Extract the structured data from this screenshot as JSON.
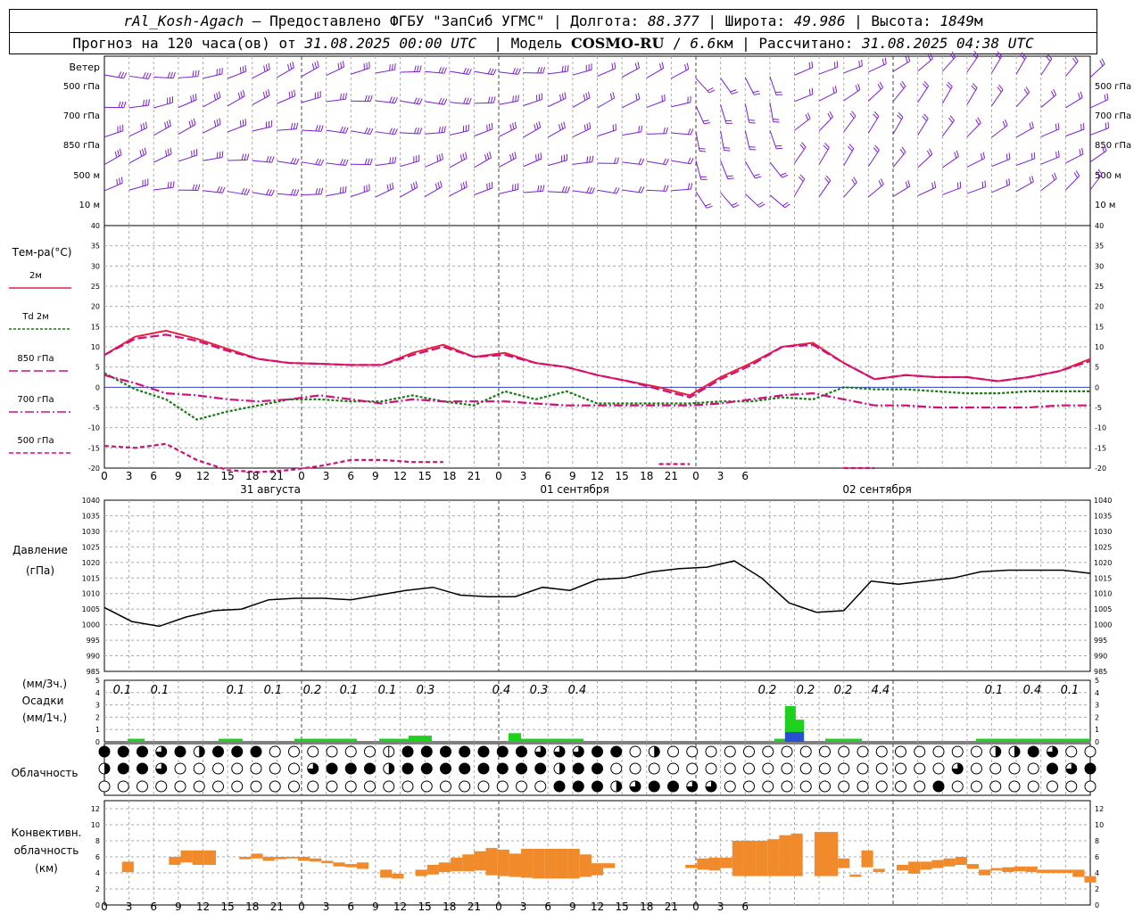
{
  "header": {
    "station": "rAl_Kosh-Agach",
    "provider": "Предоставлено ФГБУ \"ЗапСиб УГМС\"",
    "lon_label": "Долгота:",
    "lon": "88.377",
    "lat_label": "Широта:",
    "lat": "49.986",
    "alt_label": "Высота:",
    "alt": "1849",
    "alt_unit": "м",
    "forecast_label": "Прогноз на 120 часа(ов) от",
    "forecast_from": "31.08.2025 00:00 UTC",
    "model_label": "Модель",
    "model": "COSMO-RU",
    "resolution": "6.6",
    "res_unit": "км",
    "computed_label": "Рассчитано:",
    "computed": "31.08.2025 04:38 UTC"
  },
  "wind_panel": {
    "title": "Ветер",
    "levels": [
      "500 гПа",
      "700 гПа",
      "850 гПа",
      "500 м",
      "10 м"
    ],
    "color": "#7b1fd0"
  },
  "temp_panel": {
    "title": "Тем-ра(°C)",
    "legend": [
      {
        "label": "2м",
        "color": "#e8203c",
        "style": "solid"
      },
      {
        "label": "Td 2м",
        "color": "#1a7a1a",
        "style": "dotted"
      },
      {
        "label": "850 гПа",
        "color": "#d0107a",
        "style": "dashed"
      },
      {
        "label": "700 гПа",
        "color": "#d0107a",
        "style": "dashdot"
      },
      {
        "label": "500 гПа",
        "color": "#d0107a",
        "style": "dash"
      }
    ],
    "yticks": [
      "40",
      "35",
      "30",
      "25",
      "20",
      "15",
      "10",
      "5",
      "0",
      "-5",
      "-10",
      "-15",
      "-20"
    ]
  },
  "time_axis": {
    "hour_labels": [
      "0",
      "3",
      "6",
      "9",
      "12",
      "15",
      "18",
      "21",
      "0",
      "3",
      "6",
      "9",
      "12",
      "15",
      "18",
      "21",
      "0",
      "3",
      "6",
      "9",
      "12",
      "15",
      "18",
      "21",
      "0",
      "3",
      "6"
    ],
    "days": [
      "31 августа",
      "01 сентября",
      "02 сентября"
    ]
  },
  "pressure_panel": {
    "title": "Давление",
    "unit": "(гПа)",
    "yticks": [
      "1040",
      "1035",
      "1030",
      "1025",
      "1020",
      "1015",
      "1010",
      "1005",
      "1000",
      "995",
      "990",
      "985"
    ]
  },
  "precip_panel": {
    "unit3": "(мм/3ч.)",
    "title": "Осадки",
    "unit1": "(мм/1ч.)",
    "yticks": [
      "5",
      "4",
      "3",
      "2",
      "1",
      "0"
    ],
    "totals": [
      "0.1",
      "0.1",
      "0.1",
      "0.1",
      "0.2",
      "0.1",
      "0.1",
      "0.3",
      "0.4",
      "0.3",
      "0.4",
      "0.2",
      "0.2",
      "0.2",
      "4.4",
      "0.1",
      "0.4",
      "0.1"
    ]
  },
  "cloud_panel": {
    "title": "Облачность"
  },
  "conv_panel": {
    "title1": "Конвективн.",
    "title2": "облачность",
    "unit": "(км)",
    "yticks": [
      "12",
      "10",
      "8",
      "6",
      "4",
      "2",
      "0"
    ],
    "color": "#f08a2a"
  },
  "chart_data": [
    {
      "type": "line",
      "title": "Тем-ра(°C)",
      "x_hours": [
        0,
        3,
        6,
        9,
        12,
        15,
        18,
        21,
        24,
        27,
        30,
        33,
        36,
        39,
        42,
        45,
        48,
        51,
        54,
        57,
        60,
        63,
        66,
        69,
        72,
        75,
        78,
        81,
        84,
        87,
        90,
        93,
        96,
        99,
        102,
        105,
        108,
        111,
        114,
        117,
        120
      ],
      "ylim": [
        -20,
        40
      ],
      "series": [
        {
          "name": "2м",
          "values": [
            8,
            12.5,
            14,
            12,
            9.5,
            7,
            6,
            5.8,
            5.5,
            5.5,
            8.5,
            10.5,
            7.5,
            8.5,
            6,
            5,
            3,
            1.5,
            0,
            -2,
            2.5,
            6,
            10,
            11,
            6,
            2,
            3,
            2.5,
            2.5,
            1.5,
            2.5,
            4,
            7
          ]
        },
        {
          "name": "Td 2м",
          "values": [
            3.5,
            -0.5,
            -3,
            -8,
            -6,
            -4.5,
            -3,
            -3,
            -3.5,
            -3.5,
            -2,
            -3.5,
            -4.5,
            -1,
            -3,
            -1,
            -4,
            -4,
            -4,
            -4,
            -3.5,
            -3.5,
            -2.5,
            -3,
            0,
            -0.5,
            -0.5,
            -1,
            -1.5,
            -1.5,
            -1,
            -1,
            -1
          ]
        },
        {
          "name": "850 гПа",
          "values": [
            8,
            12,
            13,
            11.5,
            9,
            7,
            6,
            5.8,
            5.5,
            5.5,
            8,
            10,
            7.5,
            8,
            6,
            5,
            3,
            1.5,
            -0.5,
            -2.5,
            2,
            5.5,
            10,
            10.5,
            6,
            2,
            3,
            2.5,
            2.5,
            1.5,
            2.5,
            4,
            6.5
          ]
        },
        {
          "name": "700 гПа",
          "values": [
            3,
            1,
            -1.5,
            -2,
            -3,
            -3.5,
            -3,
            -2,
            -3,
            -4,
            -3,
            -3.5,
            -3.5,
            -3.5,
            -4,
            -4.5,
            -4.5,
            -4.5,
            -4.5,
            -4.5,
            -4,
            -3,
            -2,
            -1.5,
            -3,
            -4.5,
            -4.5,
            -5,
            -5,
            -5,
            -5,
            -4.5,
            -4.5
          ]
        },
        {
          "name": "500 гПа",
          "values": [
            -14.5,
            -15,
            -14,
            -18,
            -20.5,
            -21,
            -20.5,
            -19.5,
            -18,
            -18,
            -18.5,
            -18.5,
            null,
            null,
            null,
            null,
            null,
            null,
            -19,
            -19,
            null,
            null,
            null,
            null,
            -20,
            -20,
            null,
            null,
            null,
            null,
            null,
            null,
            null
          ]
        }
      ]
    },
    {
      "type": "line",
      "title": "Давление",
      "ylabel": "(гПа)",
      "ylim": [
        985,
        1040
      ],
      "x_hours": [
        0,
        3,
        6,
        9,
        12,
        15,
        18,
        21,
        24,
        27,
        30,
        33,
        36,
        39,
        42,
        45,
        48,
        51,
        54,
        57,
        60,
        63,
        66,
        69,
        72,
        75,
        78,
        81,
        84,
        87,
        90,
        93,
        96,
        99,
        102,
        105,
        108,
        111,
        114,
        117,
        120
      ],
      "series": [
        {
          "name": "Давление",
          "values": [
            1005.5,
            1001,
            999.5,
            1002.5,
            1004.5,
            1005,
            1008,
            1008.5,
            1008.5,
            1008,
            1009.5,
            1011,
            1012,
            1009.5,
            1009,
            1009,
            1012,
            1011,
            1014.5,
            1015,
            1017,
            1018,
            1018.5,
            1020.5,
            1015,
            1007,
            1004,
            1004.5,
            1014,
            1013,
            1014,
            1015,
            1017,
            1017.5,
            1017.5,
            1017.5,
            1016.5
          ]
        }
      ]
    },
    {
      "type": "bar",
      "title": "Осадки",
      "ylabel": "(мм/1ч.)",
      "ylim": [
        0,
        5
      ],
      "x_hours": [
        83.5,
        84.5
      ],
      "series": [
        {
          "name": "Осадки",
          "values": [
            2.9,
            1.8
          ]
        }
      ]
    },
    {
      "type": "bar",
      "title": "Конвективн. облачность",
      "ylabel": "(км)",
      "ylim": [
        0,
        12
      ],
      "bars": [
        [
          2,
          4.1,
          5.4
        ],
        [
          6,
          5,
          6
        ],
        [
          7,
          5.3,
          6.8
        ],
        [
          8,
          5,
          6.8
        ],
        [
          9,
          5,
          6.8
        ],
        [
          12,
          5.7,
          6
        ],
        [
          13,
          5.8,
          6.4
        ],
        [
          14,
          5.5,
          6
        ],
        [
          15,
          5.7,
          6
        ],
        [
          16,
          5.8,
          6
        ],
        [
          17,
          5.5,
          6
        ],
        [
          18,
          5.4,
          5.8
        ],
        [
          19,
          5.2,
          5.5
        ],
        [
          20,
          4.8,
          5.3
        ],
        [
          21,
          4.7,
          5.1
        ],
        [
          22,
          4.5,
          5.3
        ],
        [
          24,
          3.4,
          4.4
        ],
        [
          25,
          3.3,
          3.9
        ],
        [
          27,
          3.6,
          4.4
        ],
        [
          28,
          3.8,
          5
        ],
        [
          29,
          4.1,
          5.3
        ],
        [
          30,
          4.2,
          5.9
        ],
        [
          31,
          4.2,
          6.3
        ],
        [
          32,
          4.3,
          6.7
        ],
        [
          33,
          3.7,
          7.1
        ],
        [
          34,
          3.6,
          6.9
        ],
        [
          35,
          3.5,
          6.4
        ],
        [
          36,
          3.4,
          7
        ],
        [
          37,
          3.3,
          7
        ],
        [
          38,
          3.3,
          7
        ],
        [
          39,
          3.3,
          7
        ],
        [
          40,
          3.3,
          7
        ],
        [
          41,
          3.5,
          6.3
        ],
        [
          42,
          3.7,
          5.2
        ],
        [
          43,
          4.6,
          5.2
        ],
        [
          50,
          4.6,
          5
        ],
        [
          51,
          4.4,
          5.8
        ],
        [
          52,
          4.3,
          5.9
        ],
        [
          53,
          4.6,
          5.9
        ],
        [
          54,
          3.6,
          8
        ],
        [
          55,
          3.6,
          8
        ],
        [
          56,
          3.6,
          8
        ],
        [
          57,
          3.6,
          8.2
        ],
        [
          58,
          3.6,
          8.7
        ],
        [
          59,
          3.6,
          8.9
        ],
        [
          61,
          3.6,
          9.1
        ],
        [
          62,
          3.6,
          9.1
        ],
        [
          63,
          4.6,
          5.8
        ],
        [
          64,
          3.5,
          3.8
        ],
        [
          65,
          4.7,
          6.8
        ],
        [
          66,
          4.1,
          4.5
        ],
        [
          68,
          4.3,
          5
        ],
        [
          69,
          3.9,
          5.4
        ],
        [
          70,
          4.4,
          5.4
        ],
        [
          71,
          4.6,
          5.6
        ],
        [
          72,
          4.8,
          5.8
        ],
        [
          73,
          5,
          6
        ],
        [
          74,
          4.5,
          5.1
        ],
        [
          75,
          3.7,
          4.4
        ],
        [
          76,
          4.3,
          4.6
        ],
        [
          77,
          4.1,
          4.7
        ],
        [
          78,
          4.2,
          4.8
        ],
        [
          79,
          4.1,
          4.8
        ],
        [
          80,
          4,
          4.4
        ],
        [
          81,
          4,
          4.4
        ],
        [
          82,
          4,
          4.4
        ],
        [
          83,
          3.5,
          4.4
        ],
        [
          84,
          2.8,
          3.6
        ]
      ]
    }
  ]
}
